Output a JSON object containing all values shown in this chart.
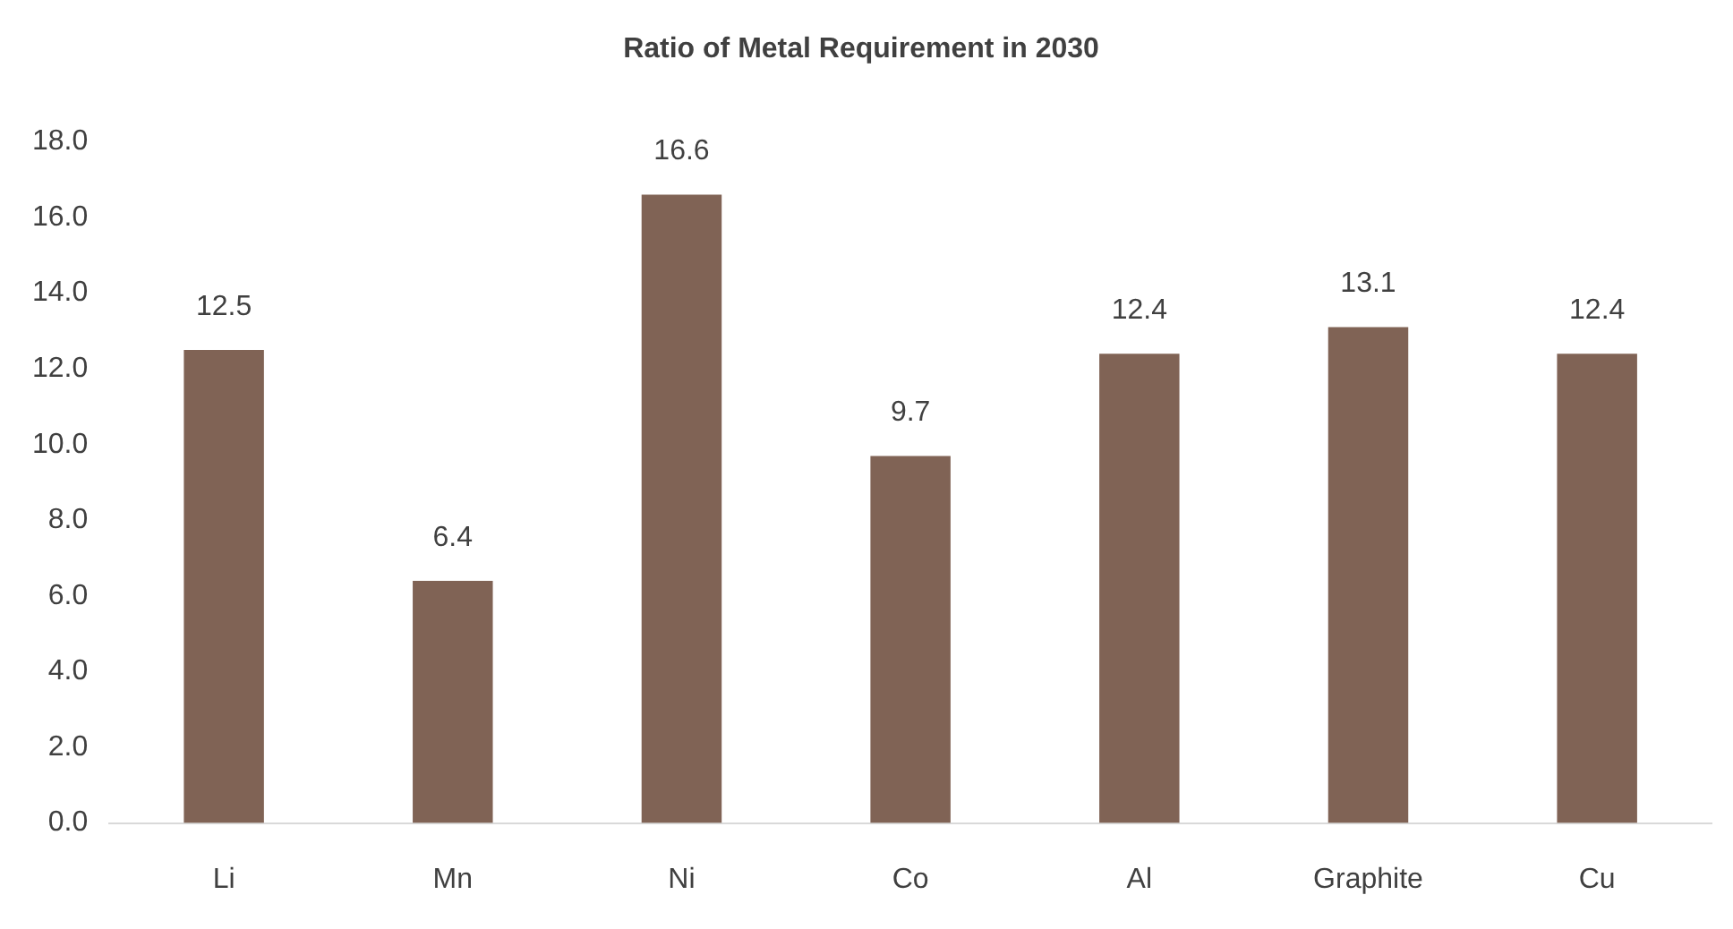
{
  "chart_data": {
    "type": "bar",
    "title": "Ratio of Metal Requirement in 2030",
    "categories": [
      "Li",
      "Mn",
      "Ni",
      "Co",
      "Al",
      "Graphite",
      "Cu"
    ],
    "values": [
      12.5,
      6.4,
      16.6,
      9.7,
      12.4,
      13.1,
      12.4
    ],
    "color": "#806355",
    "ylim": [
      0,
      18
    ],
    "yticks": [
      {
        "value": 0,
        "label": "0.0"
      },
      {
        "value": 2,
        "label": "2.0"
      },
      {
        "value": 4,
        "label": "4.0"
      },
      {
        "value": 6,
        "label": "6.0"
      },
      {
        "value": 8,
        "label": "8.0"
      },
      {
        "value": 10,
        "label": "10.0"
      },
      {
        "value": 12,
        "label": "12.0"
      },
      {
        "value": 14,
        "label": "14.0"
      },
      {
        "value": 16,
        "label": "16.0"
      },
      {
        "value": 18,
        "label": "18.0"
      }
    ],
    "data_labels": true
  }
}
